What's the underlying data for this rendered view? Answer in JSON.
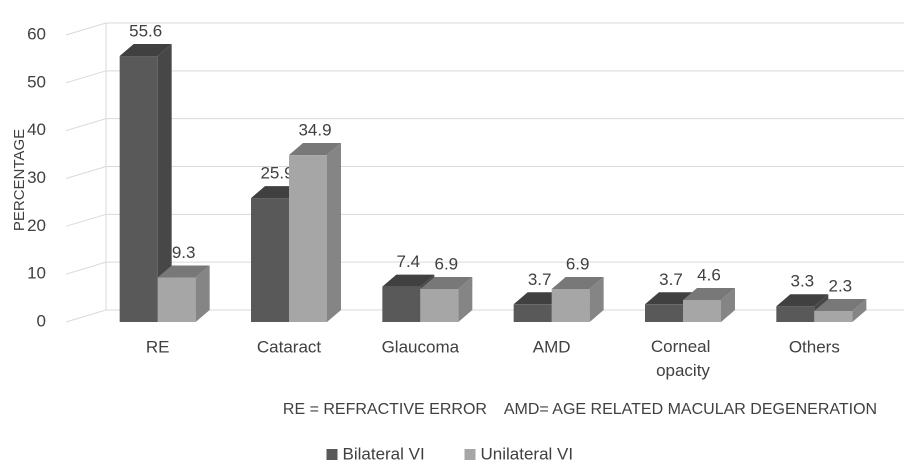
{
  "chart_data": {
    "type": "bar3d",
    "y_label": "PERCENTAGE",
    "annotation": "RE = REFRACTIVE ERROR    AMD= AGE RELATED MACULAR DEGENERATION",
    "categories": [
      "RE",
      "Cataract",
      "Glaucoma",
      "AMD",
      "Corneal opacity",
      "Others"
    ],
    "series": [
      {
        "name": "Bilateral VI",
        "color": "#595959",
        "values": [
          55.6,
          25.9,
          7.4,
          3.7,
          3.7,
          3.3
        ]
      },
      {
        "name": "Unilateral VI",
        "color": "#a6a6a6",
        "values": [
          9.3,
          34.9,
          6.9,
          6.9,
          4.6,
          2.3
        ]
      }
    ],
    "ylim": [
      0,
      60
    ],
    "yticks": [
      0,
      10,
      20,
      30,
      40,
      50,
      60
    ],
    "grid": true,
    "legend": "bottom"
  }
}
